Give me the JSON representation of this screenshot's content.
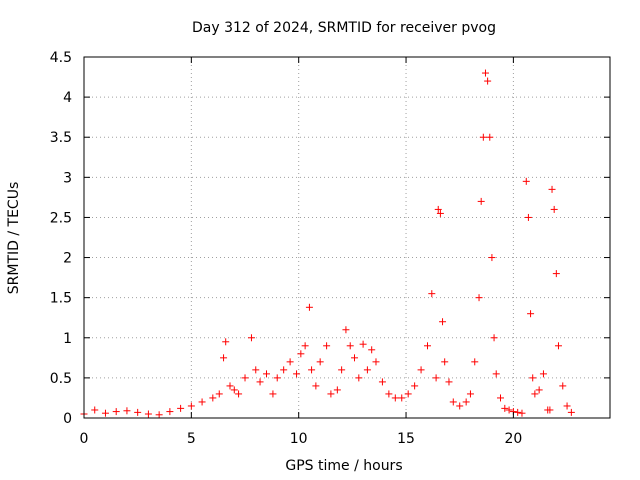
{
  "chart_data": {
    "type": "scatter",
    "title": "Day 312 of 2024, SRMTID for receiver pvog",
    "xlabel": "GPS time / hours",
    "ylabel": "SRMTID / TECUs",
    "xlim": [
      0,
      24.5
    ],
    "ylim": [
      0,
      4.5
    ],
    "x_ticks": [
      0,
      5,
      10,
      15,
      20
    ],
    "x_tick_labels": [
      "0",
      "5",
      "10",
      "15",
      "20"
    ],
    "y_ticks": [
      0,
      0.5,
      1,
      1.5,
      2,
      2.5,
      3,
      3.5,
      4,
      4.5
    ],
    "y_tick_labels": [
      "0",
      "0.5",
      "1",
      "1.5",
      "2",
      "2.5",
      "3",
      "3.5",
      "4",
      "4.5"
    ],
    "grid": true,
    "marker": "+",
    "color": "#ff0000",
    "series": [
      {
        "name": "SRMTID",
        "x": [
          0.0,
          0.5,
          1.0,
          1.5,
          2.0,
          2.5,
          3.0,
          3.5,
          4.0,
          4.5,
          5.0,
          5.5,
          6.0,
          6.3,
          6.5,
          6.6,
          6.8,
          7.0,
          7.2,
          7.5,
          7.8,
          8.0,
          8.2,
          8.5,
          8.8,
          9.0,
          9.3,
          9.6,
          9.9,
          10.1,
          10.3,
          10.5,
          10.6,
          10.8,
          11.0,
          11.3,
          11.5,
          11.8,
          12.0,
          12.2,
          12.4,
          12.6,
          12.8,
          13.0,
          13.2,
          13.4,
          13.6,
          13.9,
          14.2,
          14.5,
          14.8,
          15.1,
          15.4,
          15.7,
          16.0,
          16.2,
          16.4,
          16.5,
          16.6,
          16.7,
          16.8,
          17.0,
          17.2,
          17.5,
          17.8,
          18.0,
          18.2,
          18.4,
          18.5,
          18.6,
          18.7,
          18.8,
          18.9,
          19.0,
          19.1,
          19.2,
          19.4,
          19.6,
          19.8,
          20.0,
          20.2,
          20.4,
          20.6,
          20.7,
          20.8,
          20.9,
          21.0,
          21.2,
          21.4,
          21.6,
          21.7,
          21.8,
          21.9,
          22.0,
          22.1,
          22.3,
          22.5,
          22.7
        ],
        "y": [
          0.05,
          0.1,
          0.06,
          0.08,
          0.09,
          0.07,
          0.05,
          0.04,
          0.08,
          0.12,
          0.15,
          0.2,
          0.25,
          0.3,
          0.75,
          0.95,
          0.4,
          0.35,
          0.3,
          0.5,
          1.0,
          0.6,
          0.45,
          0.55,
          0.3,
          0.5,
          0.6,
          0.7,
          0.55,
          0.8,
          0.9,
          1.38,
          0.6,
          0.4,
          0.7,
          0.9,
          0.3,
          0.35,
          0.6,
          1.1,
          0.9,
          0.75,
          0.5,
          0.92,
          0.6,
          0.85,
          0.7,
          0.45,
          0.3,
          0.25,
          0.25,
          0.3,
          0.4,
          0.6,
          0.9,
          1.55,
          0.5,
          2.6,
          2.55,
          1.2,
          0.7,
          0.45,
          0.2,
          0.15,
          0.2,
          0.3,
          0.7,
          1.5,
          2.7,
          3.5,
          4.3,
          4.2,
          3.5,
          2.0,
          1.0,
          0.55,
          0.25,
          0.12,
          0.1,
          0.08,
          0.07,
          0.06,
          2.95,
          2.5,
          1.3,
          0.5,
          0.3,
          0.35,
          0.55,
          0.1,
          0.1,
          2.85,
          2.6,
          1.8,
          0.9,
          0.4,
          0.15,
          0.07
        ]
      }
    ]
  }
}
